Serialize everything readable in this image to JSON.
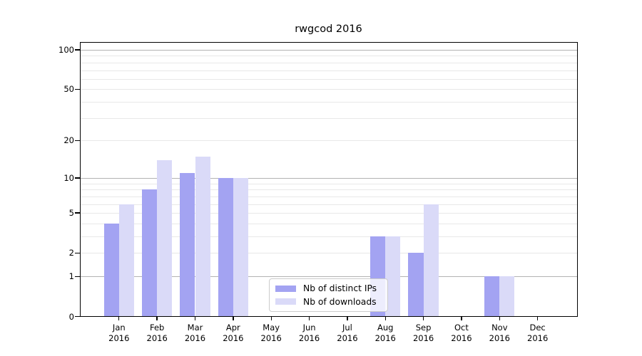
{
  "title": "rwgcod 2016",
  "colors": {
    "ips": "#a3a3f2",
    "downloads": "#dadaf8",
    "major_grid": "#b2b2b2",
    "minor_grid": "#e8e8e8",
    "spine": "#000000",
    "legend_border": "#cccccc"
  },
  "legend": {
    "items": [
      {
        "label": "Nb of distinct IPs",
        "series": "ips"
      },
      {
        "label": "Nb of downloads",
        "series": "downloads"
      }
    ]
  },
  "chart_data": {
    "type": "bar",
    "title": "rwgcod 2016",
    "categories": [
      "Jan",
      "Feb",
      "Mar",
      "Apr",
      "May",
      "Jun",
      "Jul",
      "Aug",
      "Sep",
      "Oct",
      "Nov",
      "Dec"
    ],
    "year_label": "2016",
    "series": [
      {
        "name": "Nb of distinct IPs",
        "color_key": "ips",
        "values": [
          4,
          8,
          11,
          10,
          0,
          0,
          0,
          3,
          2,
          0,
          1,
          0
        ]
      },
      {
        "name": "Nb of downloads",
        "color_key": "downloads",
        "values": [
          6,
          14,
          15,
          10,
          0,
          0,
          0,
          3,
          6,
          0,
          1,
          0
        ]
      }
    ],
    "xlabel": "",
    "ylabel": "",
    "yscale": "log1p",
    "ylim": [
      0,
      100
    ],
    "yticks": [
      0,
      1,
      2,
      5,
      10,
      20,
      50,
      100
    ],
    "major_gridlines": [
      1,
      10,
      100
    ],
    "minor_gridlines": [
      2,
      3,
      4,
      5,
      6,
      7,
      8,
      9,
      20,
      30,
      40,
      50,
      60,
      70,
      80,
      90
    ],
    "grid": "horizontal",
    "legend_position": "lower center-right inside plot"
  }
}
